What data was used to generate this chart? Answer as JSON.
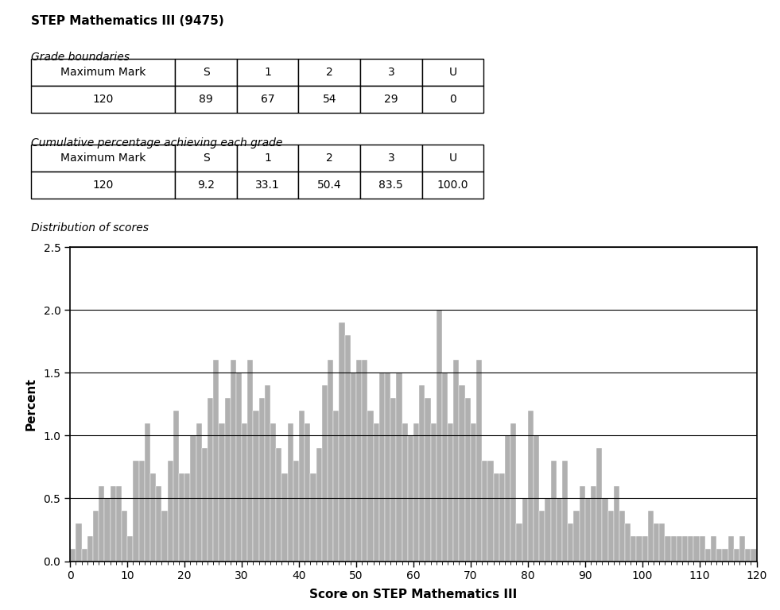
{
  "title": "STEP Mathematics III (9475)",
  "grade_boundaries_header": [
    "Maximum Mark",
    "S",
    "1",
    "2",
    "3",
    "U"
  ],
  "grade_boundaries_row": [
    "120",
    "89",
    "67",
    "54",
    "29",
    "0"
  ],
  "cumulative_header": [
    "Maximum Mark",
    "S",
    "1",
    "2",
    "3",
    "U"
  ],
  "cumulative_row": [
    "120",
    "9.2",
    "33.1",
    "50.4",
    "83.5",
    "100.0"
  ],
  "table1_label": "Grade boundaries",
  "table2_label": "Cumulative percentage achieving each grade",
  "hist_label": "Distribution of scores",
  "xlabel": "Score on STEP Mathematics III",
  "ylabel": "Percent",
  "ylim": [
    0,
    2.5
  ],
  "xlim": [
    0,
    120
  ],
  "bar_color": "#b0b0b0",
  "bar_edgecolor": "#ffffff",
  "hist_values": [
    0.1,
    0.3,
    0.1,
    0.2,
    0.4,
    0.6,
    0.5,
    0.6,
    0.6,
    0.4,
    0.2,
    0.8,
    0.8,
    1.1,
    0.7,
    0.6,
    0.4,
    0.8,
    1.2,
    0.7,
    0.7,
    1.0,
    1.1,
    0.9,
    1.3,
    1.6,
    1.1,
    1.3,
    1.6,
    1.5,
    1.1,
    1.6,
    1.2,
    1.3,
    1.4,
    1.1,
    0.9,
    0.7,
    1.1,
    0.8,
    1.2,
    1.1,
    0.7,
    0.9,
    1.4,
    1.6,
    1.2,
    1.9,
    1.8,
    1.5,
    1.6,
    1.6,
    1.2,
    1.1,
    1.5,
    1.5,
    1.3,
    1.5,
    1.1,
    1.0,
    1.1,
    1.4,
    1.3,
    1.1,
    2.0,
    1.5,
    1.1,
    1.6,
    1.4,
    1.3,
    1.1,
    1.6,
    0.8,
    0.8,
    0.7,
    0.7,
    1.0,
    1.1,
    0.3,
    0.5,
    1.2,
    1.0,
    0.4,
    0.5,
    0.8,
    0.5,
    0.8,
    0.3,
    0.4,
    0.6,
    0.5,
    0.6,
    0.9,
    0.5,
    0.4,
    0.6,
    0.4,
    0.3,
    0.2,
    0.2,
    0.2,
    0.4,
    0.3,
    0.3,
    0.2,
    0.2,
    0.2,
    0.2,
    0.2,
    0.2,
    0.2,
    0.1,
    0.2,
    0.1,
    0.1,
    0.2,
    0.1,
    0.2,
    0.1,
    0.1,
    0.1
  ]
}
